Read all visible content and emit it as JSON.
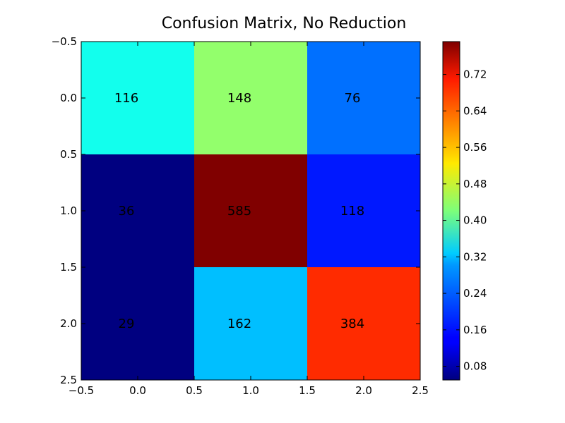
{
  "chart_data": {
    "type": "heatmap",
    "title": "Confusion Matrix, No Reduction",
    "xlabel": "",
    "ylabel": "",
    "xlim": [
      -0.5,
      2.5
    ],
    "ylim": [
      2.5,
      -0.5
    ],
    "x_ticks": [
      "−0.5",
      "0.0",
      "0.5",
      "1.0",
      "1.5",
      "2.0",
      "2.5"
    ],
    "y_ticks": [
      "−0.5",
      "0.0",
      "0.5",
      "1.0",
      "1.5",
      "2.0",
      "2.5"
    ],
    "x_tick_values": [
      -0.5,
      0.0,
      0.5,
      1.0,
      1.5,
      2.0,
      2.5
    ],
    "y_tick_values": [
      -0.5,
      0.0,
      0.5,
      1.0,
      1.5,
      2.0,
      2.5
    ],
    "cell_labels": [
      [
        116,
        148,
        76
      ],
      [
        36,
        585,
        118
      ],
      [
        29,
        162,
        384
      ]
    ],
    "normalized_values": [
      [
        0.341,
        0.435,
        0.224
      ],
      [
        0.049,
        0.792,
        0.16
      ],
      [
        0.05,
        0.282,
        0.668
      ]
    ],
    "colormap": "jet",
    "colorbar": {
      "range": [
        0.05,
        0.792
      ],
      "ticks": [
        "0.08",
        "0.16",
        "0.24",
        "0.32",
        "0.40",
        "0.48",
        "0.56",
        "0.64",
        "0.72"
      ],
      "tick_values": [
        0.08,
        0.16,
        0.24,
        0.32,
        0.4,
        0.48,
        0.56,
        0.64,
        0.72
      ]
    },
    "grid": false,
    "legend": "none"
  }
}
